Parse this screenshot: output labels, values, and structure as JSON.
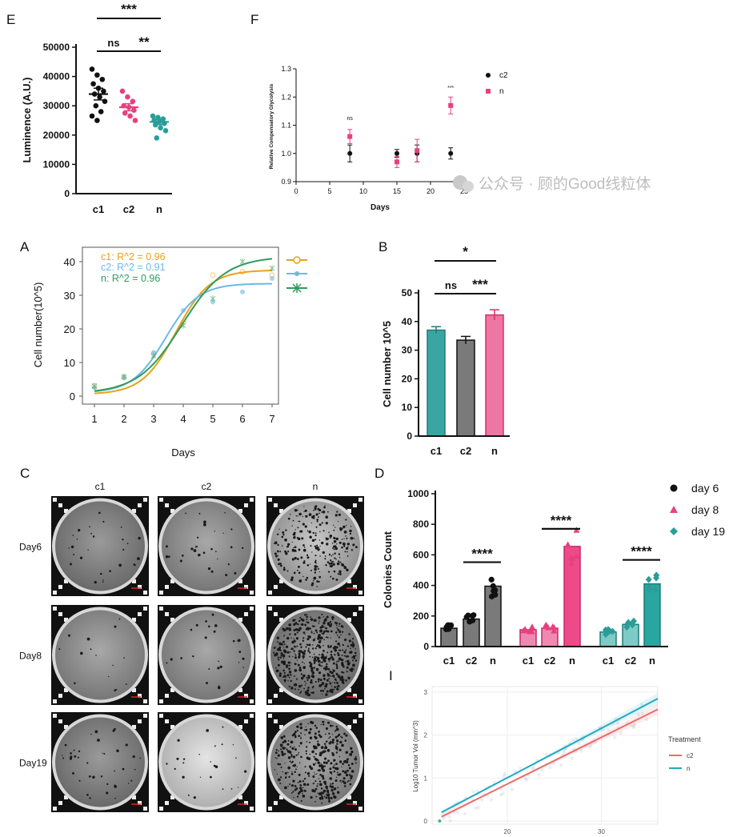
{
  "colors": {
    "c1": "#2a9d98",
    "c2": "#7a7a7a",
    "n": "#e7407f",
    "black": "#111111",
    "A_c1": "#e8a21a",
    "A_c2": "#6cb9e6",
    "A_n": "#2e9b5c",
    "I_c2": "#ee6b6b",
    "I_n": "#21a9c2"
  },
  "watermark": "公众号 · 顾的Good线粒体",
  "chart_data": [
    {
      "panel": "E",
      "type": "scatter",
      "ylabel": "Luminence (A.U.)",
      "ylim": [
        0,
        50000
      ],
      "yticks": [
        "0",
        "10000",
        "20000",
        "30000",
        "40000",
        "50000"
      ],
      "categories": [
        "c1",
        "c2",
        "n"
      ],
      "means": [
        34000,
        29500,
        24500
      ],
      "sem": [
        2000,
        1200,
        900
      ],
      "points": [
        [
          42500,
          40500,
          39000,
          37500,
          36000,
          35000,
          34000,
          33000,
          31500,
          30000,
          28000,
          26500,
          25000
        ],
        [
          35000,
          33000,
          31500,
          30000,
          29500,
          28500,
          27500,
          26500,
          25000
        ],
        [
          26500,
          26000,
          25500,
          25000,
          24500,
          24000,
          23500,
          22500,
          21500,
          19000
        ]
      ],
      "brackets": [
        {
          "from": 0,
          "to": 2,
          "label": "***"
        },
        {
          "from": 0,
          "to": 1,
          "label": "ns"
        },
        {
          "from": 1,
          "to": 2,
          "label": "**"
        }
      ]
    },
    {
      "panel": "F",
      "type": "scatter",
      "ylabel": "Relative Compensatory Glycolysis",
      "xlabel": "Days",
      "xlim": [
        0,
        25
      ],
      "ylim": [
        0.9,
        1.3
      ],
      "xticks": [
        "0",
        "5",
        "10",
        "15",
        "20",
        "25"
      ],
      "yticks": [
        "0.9",
        "1.0",
        "1.1",
        "1.2",
        "1.3"
      ],
      "series": [
        {
          "name": "c2",
          "x": [
            8,
            15,
            18,
            23
          ],
          "y": [
            1.0,
            1.0,
            1.0,
            1.0
          ],
          "err": [
            0.03,
            0.014,
            0.03,
            0.02
          ]
        },
        {
          "name": "n",
          "x": [
            8,
            15,
            18,
            23
          ],
          "y": [
            1.06,
            0.97,
            1.01,
            1.17
          ],
          "err": [
            0.025,
            0.02,
            0.04,
            0.03
          ]
        }
      ],
      "annotations": [
        {
          "x": 8,
          "label": "ns"
        },
        {
          "x": 23,
          "label": "***"
        }
      ]
    },
    {
      "panel": "A",
      "type": "line",
      "ylabel": "Cell number(10^5)",
      "xlabel": "Days",
      "xlim": [
        1,
        7
      ],
      "ylim": [
        0,
        40
      ],
      "xticks": [
        "1",
        "2",
        "3",
        "4",
        "5",
        "6",
        "7"
      ],
      "yticks": [
        "0",
        "10",
        "20",
        "30",
        "40"
      ],
      "series": [
        {
          "name": "c1",
          "label": "c1: R^2 = 0.96",
          "x": [
            1,
            2,
            3,
            4,
            5,
            6,
            7
          ],
          "y": [
            3,
            5.5,
            12.5,
            22,
            36,
            37,
            36
          ]
        },
        {
          "name": "c2",
          "label": "c2: R^2 = 0.91",
          "x": [
            1,
            2,
            3,
            4,
            5,
            6,
            7
          ],
          "y": [
            2.5,
            5.5,
            13,
            25.5,
            28,
            31,
            35
          ]
        },
        {
          "name": "n",
          "label": "n: R^2 = 0.96",
          "x": [
            1,
            2,
            3,
            4,
            5,
            6,
            7
          ],
          "y": [
            3,
            5.8,
            12,
            21,
            29,
            40,
            38
          ]
        }
      ],
      "fits": [
        {
          "name": "c1",
          "L": 37.5,
          "k": 1.75,
          "x0": 3.75,
          "base": 0.5
        },
        {
          "name": "c2",
          "L": 33.5,
          "k": 1.8,
          "x0": 3.4,
          "base": 1.0
        },
        {
          "name": "n",
          "L": 41.5,
          "k": 1.35,
          "x0": 3.95,
          "base": 0.8
        }
      ]
    },
    {
      "panel": "B",
      "type": "bar",
      "ylabel": "Cell number 10^5",
      "ylim": [
        0,
        50
      ],
      "yticks": [
        "0",
        "10",
        "20",
        "30",
        "40",
        "50"
      ],
      "categories": [
        "c1",
        "c2",
        "n"
      ],
      "values": [
        37,
        33.5,
        42.3
      ],
      "sem": [
        1.2,
        1.3,
        1.8
      ],
      "brackets": [
        {
          "from": 0,
          "to": 2,
          "label": "*"
        },
        {
          "from": 0,
          "to": 1,
          "label": "ns"
        },
        {
          "from": 1,
          "to": 2,
          "label": "***"
        }
      ]
    },
    {
      "panel": "C",
      "type": "image-grid",
      "columns": [
        "c1",
        "c2",
        "n"
      ],
      "rows": [
        "Day6",
        "Day8",
        "Day19"
      ]
    },
    {
      "panel": "D",
      "type": "bar",
      "ylabel": "Colonies Count",
      "ylim": [
        0,
        1000
      ],
      "yticks": [
        "0",
        "200",
        "400",
        "600",
        "800",
        "1000"
      ],
      "groups": [
        {
          "name": "day 6",
          "categories": [
            "c1",
            "c2",
            "n"
          ],
          "values": [
            120,
            180,
            395
          ],
          "sig": "****"
        },
        {
          "name": "day 8",
          "categories": [
            "c1",
            "c2",
            "n"
          ],
          "values": [
            110,
            120,
            655
          ],
          "sig": "****"
        },
        {
          "name": "day 19",
          "categories": [
            "c1",
            "c2",
            "n"
          ],
          "values": [
            95,
            145,
            410
          ],
          "sig": "****"
        }
      ]
    },
    {
      "panel": "I",
      "type": "line",
      "ylabel": "Log10 Tumor Vol (mm^3)",
      "xlim": [
        12,
        36
      ],
      "ylim": [
        0,
        3
      ],
      "xticks": [
        "20",
        "30"
      ],
      "yticks": [
        "0",
        "1",
        "2",
        "3"
      ],
      "legend_title": "Treatment",
      "series": [
        {
          "name": "c2",
          "x": [
            13,
            36
          ],
          "y": [
            0.1,
            2.6
          ]
        },
        {
          "name": "n",
          "x": [
            13,
            36
          ],
          "y": [
            0.2,
            2.85
          ]
        }
      ]
    }
  ]
}
